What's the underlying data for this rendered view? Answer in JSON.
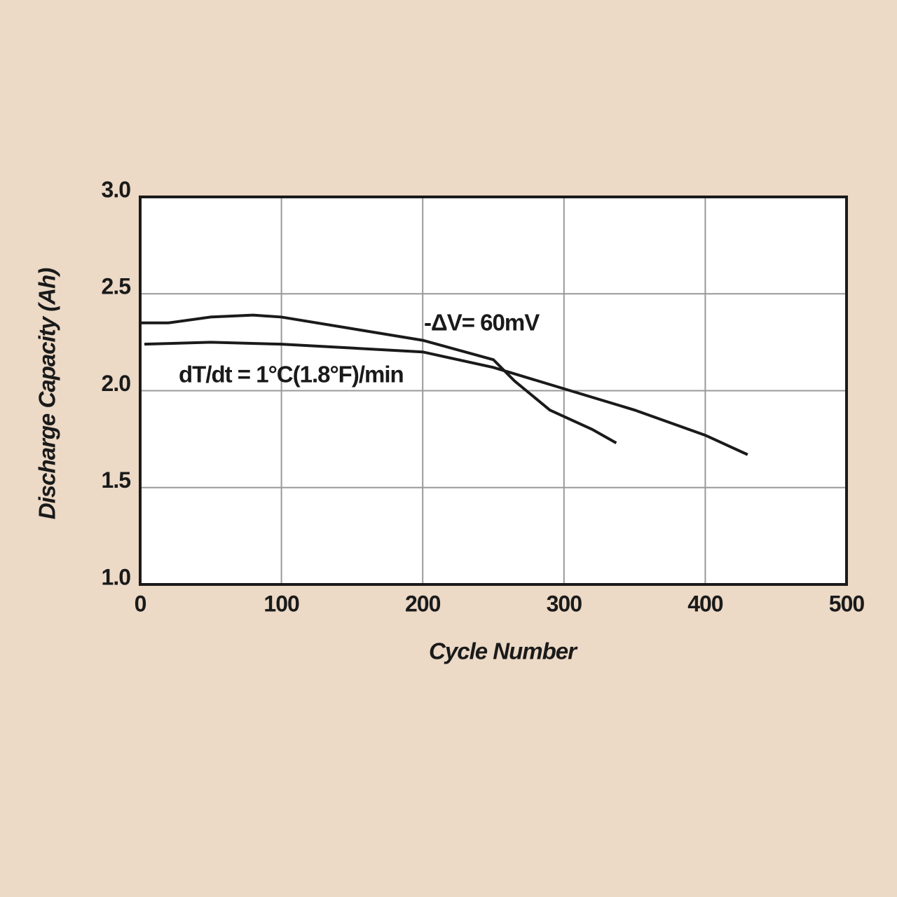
{
  "chart_data": {
    "type": "line",
    "x_label": "Cycle Number",
    "y_label": "Discharge Capacity (Ah)",
    "xlim": [
      0,
      500
    ],
    "xticks": [
      0,
      100,
      200,
      300,
      400,
      500
    ],
    "ylim": [
      1.0,
      3.0
    ],
    "yticks": [
      {
        "value": 1.0,
        "label": "1.0"
      },
      {
        "value": 1.5,
        "label": "1.5"
      },
      {
        "value": 2.0,
        "label": "2.0"
      },
      {
        "value": 2.5,
        "label": "2.5"
      },
      {
        "value": 3.0,
        "label": "3.0"
      }
    ],
    "grid": true,
    "series": [
      {
        "name": "-ΔV= 60mV",
        "color": "#1a1a1a",
        "x": [
          0,
          20,
          50,
          80,
          100,
          150,
          200,
          250,
          265,
          290,
          320,
          337
        ],
        "values": [
          2.35,
          2.35,
          2.38,
          2.39,
          2.38,
          2.32,
          2.26,
          2.16,
          2.05,
          1.9,
          1.8,
          1.73
        ]
      },
      {
        "name": "dT/dt = 1°C(1.8°F)/min",
        "color": "#1a1a1a",
        "x": [
          3,
          50,
          100,
          150,
          200,
          250,
          300,
          350,
          400,
          430
        ],
        "values": [
          2.24,
          2.25,
          2.24,
          2.22,
          2.2,
          2.12,
          2.01,
          1.9,
          1.77,
          1.67
        ]
      }
    ]
  }
}
